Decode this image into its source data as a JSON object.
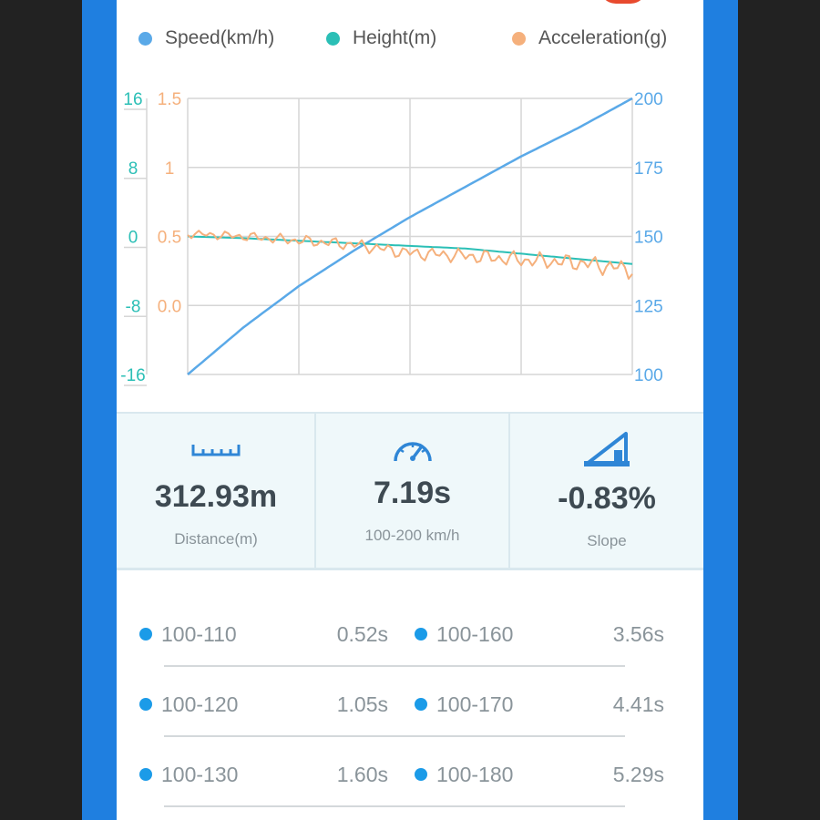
{
  "colors": {
    "speed": "#5aa9e8",
    "height": "#2bbfb6",
    "acceleration": "#f5b07c",
    "split_dot": "#1b9be8",
    "frame": "#1f7fe0"
  },
  "legend": [
    {
      "label": "Speed(km/h)",
      "color": "#5aa9e8"
    },
    {
      "label": "Height(m)",
      "color": "#2bbfb6"
    },
    {
      "label": "Acceleration(g)",
      "color": "#f5b07c"
    }
  ],
  "chart_data": {
    "type": "line",
    "grid": true,
    "x_gridlines": 4,
    "axes": {
      "height_left": {
        "ticks": [
          "16",
          "8",
          "0",
          "-8",
          "-16"
        ],
        "range": [
          -16,
          16
        ],
        "color": "#2bbfb6"
      },
      "acceleration_left": {
        "ticks": [
          "1.5",
          "1",
          "0.5",
          "0.0"
        ],
        "range": [
          -0.5,
          1.5
        ],
        "color": "#f5b07c"
      },
      "speed_right": {
        "ticks": [
          "200",
          "175",
          "150",
          "125",
          "100"
        ],
        "range": [
          100,
          200
        ],
        "color": "#5aa9e8"
      }
    },
    "x": [
      0,
      0.125,
      0.25,
      0.375,
      0.5,
      0.625,
      0.75,
      0.875,
      1.0
    ],
    "series": [
      {
        "name": "Speed(km/h)",
        "axis": "speed_right",
        "color": "#5aa9e8",
        "values": [
          100,
          117,
          132,
          145,
          157,
          168,
          179,
          189,
          200
        ]
      },
      {
        "name": "Height(m)",
        "axis": "height_left",
        "color": "#2bbfb6",
        "values": [
          0,
          -0.2,
          -0.5,
          -0.8,
          -1.1,
          -1.4,
          -2,
          -2.6,
          -3.2
        ]
      },
      {
        "name": "Acceleration(g)",
        "axis": "acceleration_left",
        "color": "#f5b07c",
        "values": [
          0.52,
          0.5,
          0.47,
          0.44,
          0.38,
          0.36,
          0.33,
          0.31,
          0.26
        ]
      }
    ]
  },
  "stats": {
    "distance": {
      "value": "312.93m",
      "label": "Distance(m)",
      "icon": "ruler-icon"
    },
    "time": {
      "value": "7.19s",
      "label": "100-200 km/h",
      "icon": "speedometer-icon"
    },
    "slope": {
      "value": "-0.83%",
      "label": "Slope",
      "icon": "slope-icon"
    }
  },
  "splits": [
    {
      "left_range": "100-110",
      "left_time": "0.52s",
      "right_range": "100-160",
      "right_time": "3.56s"
    },
    {
      "left_range": "100-120",
      "left_time": "1.05s",
      "right_range": "100-170",
      "right_time": "4.41s"
    },
    {
      "left_range": "100-130",
      "left_time": "1.60s",
      "right_range": "100-180",
      "right_time": "5.29s"
    }
  ]
}
